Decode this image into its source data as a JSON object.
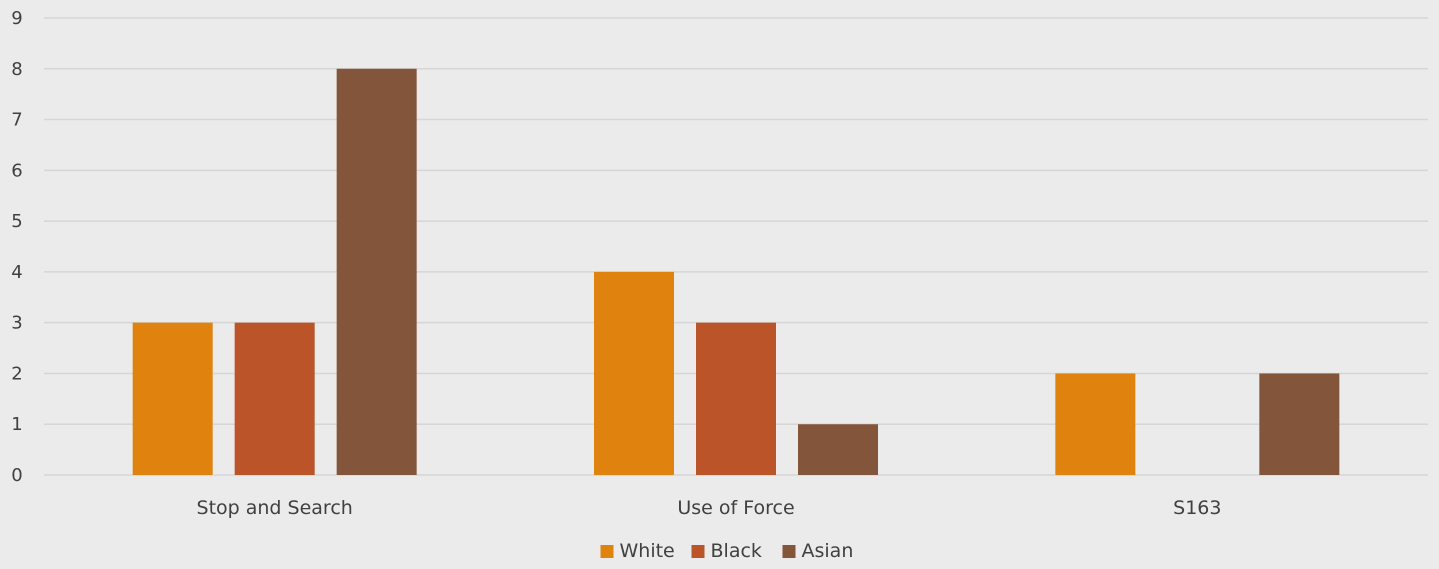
{
  "chart_data": {
    "type": "bar",
    "categories": [
      "Stop and Search",
      "Use of Force",
      "S163"
    ],
    "series": [
      {
        "name": "White",
        "color": "#e0820e",
        "values": [
          3,
          4,
          2
        ]
      },
      {
        "name": "Black",
        "color": "#bb5428",
        "values": [
          3,
          3,
          0
        ]
      },
      {
        "name": "Asian",
        "color": "#83553b",
        "values": [
          8,
          1,
          2
        ]
      }
    ],
    "yticks": [
      "0",
      "1",
      "2",
      "3",
      "4",
      "5",
      "6",
      "7",
      "8",
      "9"
    ],
    "ylim": [
      0,
      9
    ],
    "grid": true,
    "legend": "bottom",
    "background": "#ebebeb"
  }
}
